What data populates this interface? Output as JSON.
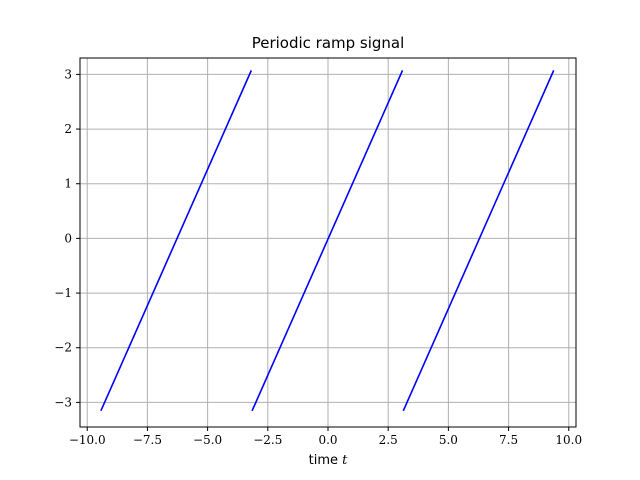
{
  "chart_data": {
    "type": "line",
    "title": "Periodic ramp signal",
    "xlabel": {
      "text": "time ",
      "var": "t"
    },
    "ylabel": "",
    "xlim": [
      -10.3,
      10.3
    ],
    "ylim": [
      -3.45,
      3.3
    ],
    "grid": true,
    "xticks": [
      -10.0,
      -7.5,
      -5.0,
      -2.5,
      0.0,
      2.5,
      5.0,
      7.5,
      10.0
    ],
    "xtick_labels": [
      "−10.0",
      "−7.5",
      "−5.0",
      "−2.5",
      "0.0",
      "2.5",
      "5.0",
      "7.5",
      "10.0"
    ],
    "yticks": [
      -3,
      -2,
      -1,
      0,
      1,
      2,
      3
    ],
    "ytick_labels": [
      "−3",
      "−2",
      "−1",
      "0",
      "1",
      "2",
      "3"
    ],
    "series_color": "#0000ff",
    "series": [
      {
        "x": [
          -9.42,
          -3.2
        ],
        "y": [
          -3.14,
          3.06
        ]
      },
      {
        "x": [
          -3.14,
          3.08
        ],
        "y": [
          -3.14,
          3.06
        ]
      },
      {
        "x": [
          3.14,
          9.36
        ],
        "y": [
          -3.14,
          3.06
        ]
      }
    ]
  }
}
